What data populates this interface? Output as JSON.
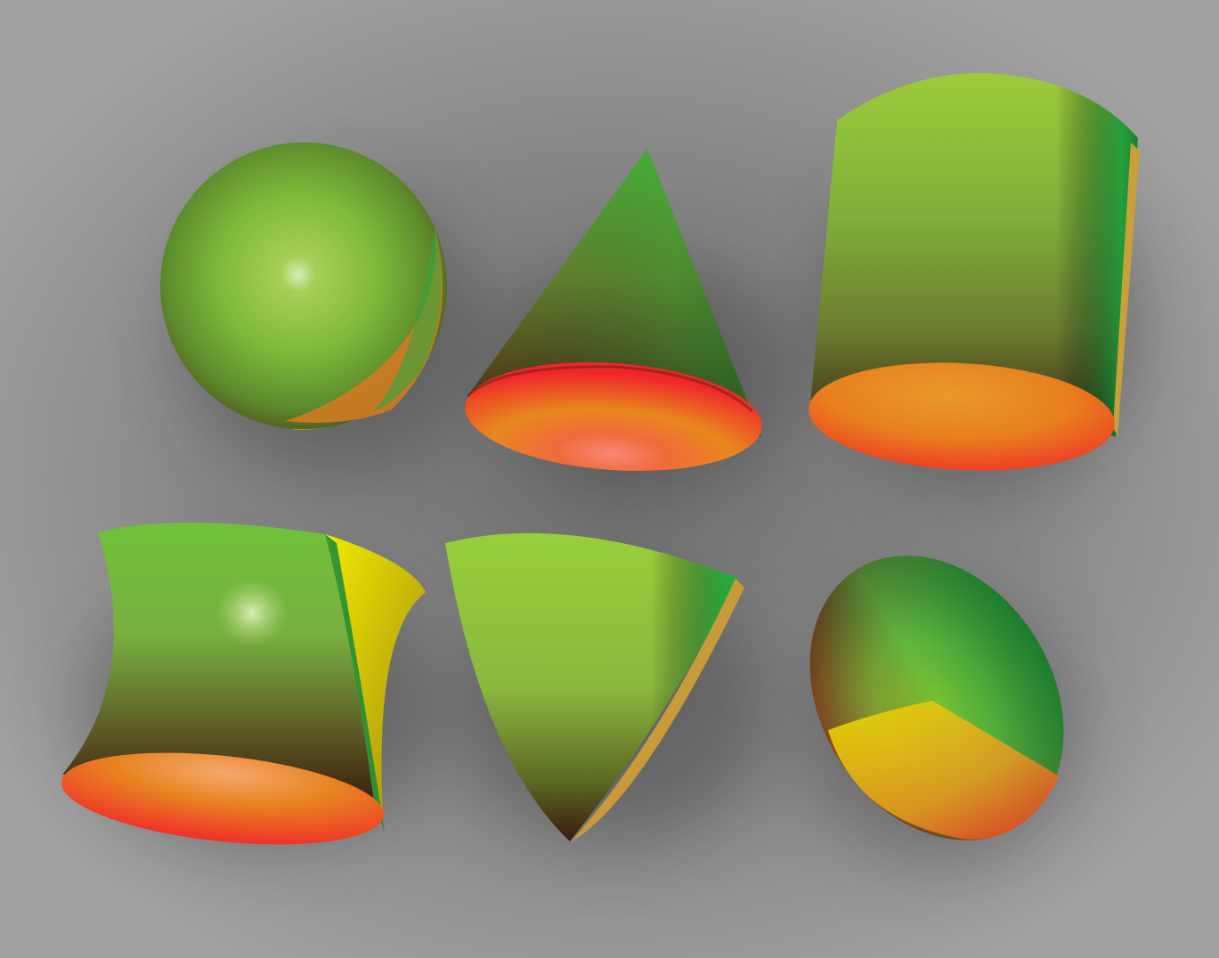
{
  "scene": {
    "background": {
      "center": "#6f706f",
      "edge": "#a3a3a3"
    },
    "palette": {
      "green": "#2fb53f",
      "lime": "#9fcd3a",
      "yellow": "#f2e400",
      "orange": "#e88a1e",
      "red": "#f0262a",
      "dark": "#4a2a10",
      "highlight": "#dff0c8"
    },
    "objects": [
      {
        "shape": "sphere",
        "row": 1,
        "column": 1
      },
      {
        "shape": "cone",
        "row": 1,
        "column": 2
      },
      {
        "shape": "cylinder",
        "row": 1,
        "column": 3
      },
      {
        "shape": "hyperboloid",
        "row": 2,
        "column": 1
      },
      {
        "shape": "paraboloid",
        "row": 2,
        "column": 2
      },
      {
        "shape": "disk",
        "row": 2,
        "column": 3
      }
    ]
  }
}
